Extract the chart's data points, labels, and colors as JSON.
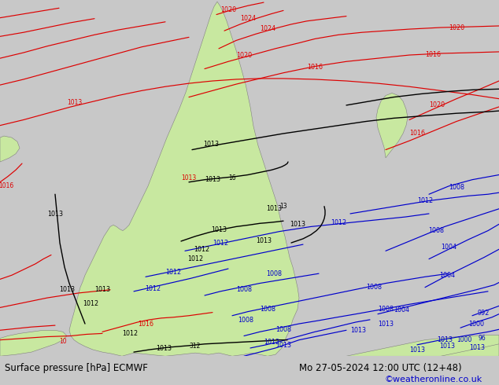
{
  "title_left": "Surface pressure [hPa] ECMWF",
  "title_right": "Mo 27-05-2024 12:00 UTC (12+48)",
  "copyright": "©weatheronline.co.uk",
  "bg_color": "#c8c8c8",
  "land_color": "#c8e8a0",
  "sea_color": "#c8c8c8",
  "fig_width": 6.34,
  "fig_height": 4.9,
  "dpi": 100,
  "bottom_bar_color": "#e8e8e8",
  "title_fontsize": 8.5,
  "copyright_fontsize": 8,
  "copyright_color": "#0000cc",
  "border_color": "#808080"
}
